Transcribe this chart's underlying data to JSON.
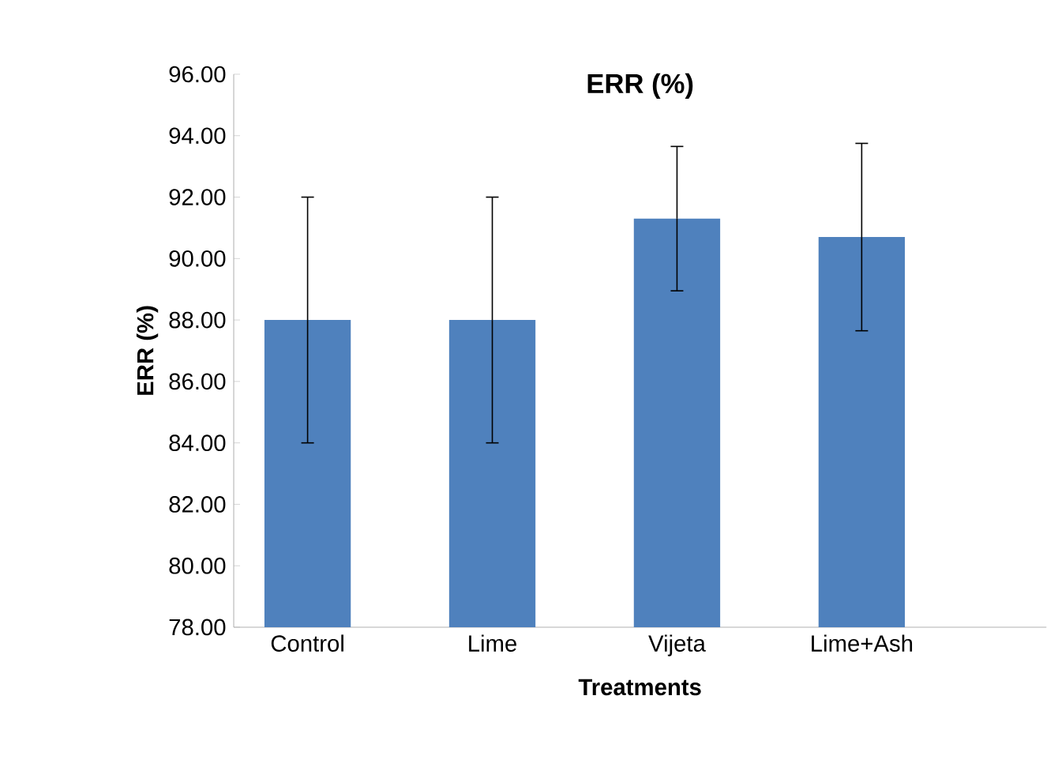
{
  "chart_data": {
    "type": "bar",
    "title": "ERR (%)",
    "xlabel": "Treatments",
    "ylabel": "ERR (%)",
    "categories": [
      "Control",
      "Lime",
      "Vijeta",
      "Lime+Ash"
    ],
    "values": [
      88.0,
      88.0,
      91.3,
      90.7
    ],
    "errors": [
      4.0,
      4.0,
      2.35,
      3.05
    ],
    "color": "#4f81bd",
    "ylim": [
      78,
      96
    ],
    "yticks": [
      {
        "value": 78,
        "label": "78.00"
      },
      {
        "value": 80,
        "label": "80.00"
      },
      {
        "value": 82,
        "label": "82.00"
      },
      {
        "value": 84,
        "label": "84.00"
      },
      {
        "value": 86,
        "label": "86.00"
      },
      {
        "value": 88,
        "label": "88.00"
      },
      {
        "value": 90,
        "label": "90.00"
      },
      {
        "value": 92,
        "label": "92.00"
      },
      {
        "value": 94,
        "label": "94.00"
      },
      {
        "value": 96,
        "label": "96.00"
      }
    ],
    "grid": false
  }
}
